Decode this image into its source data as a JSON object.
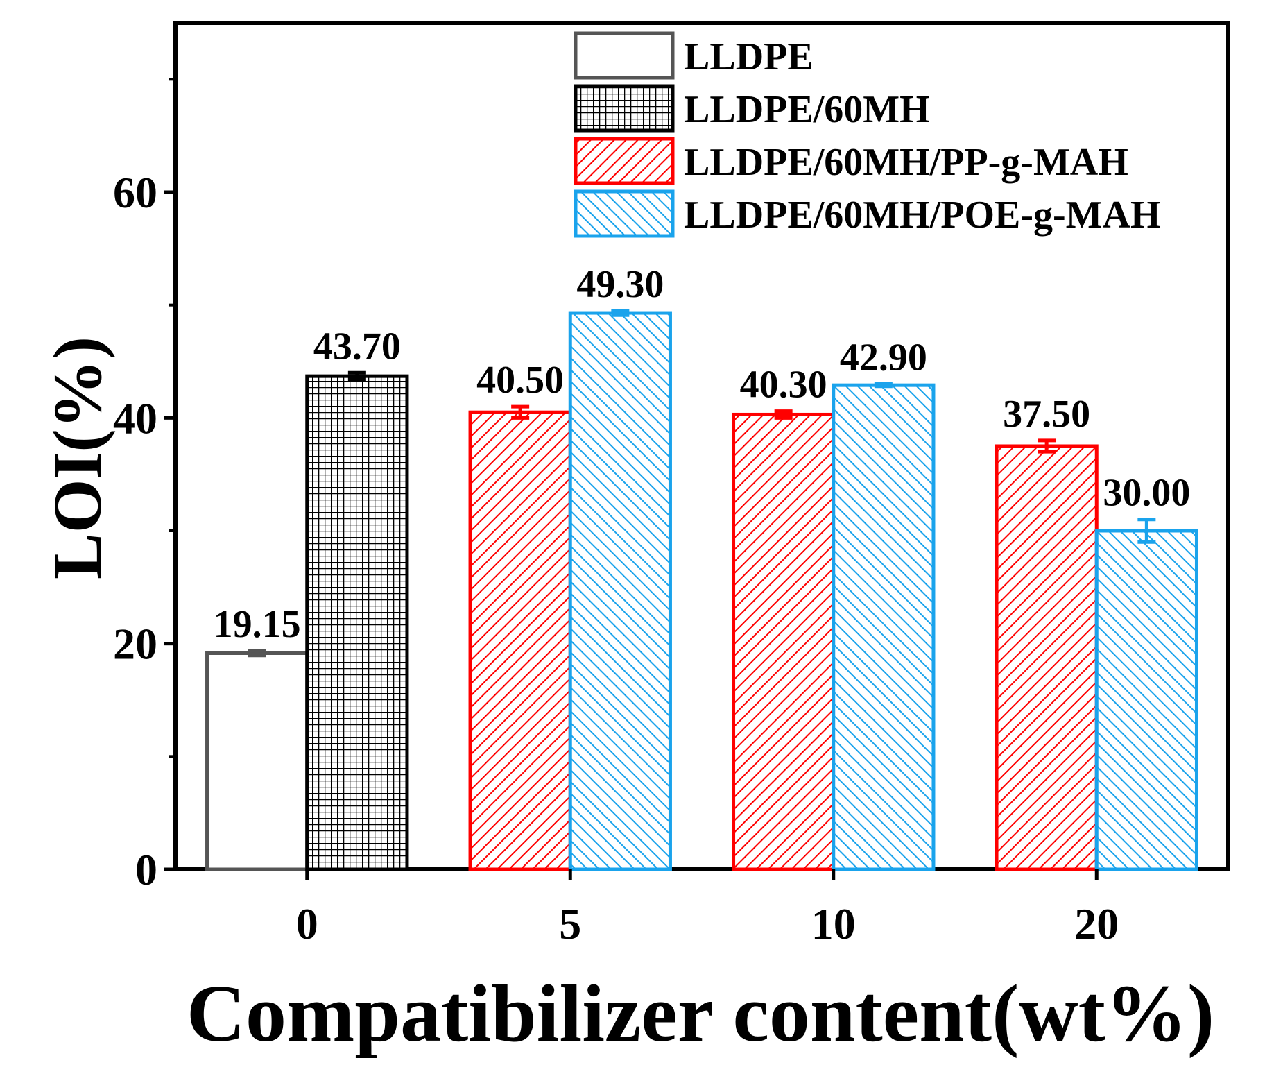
{
  "chart_data": {
    "type": "bar",
    "title": "",
    "xlabel": "Compatibilizer content(wt%)",
    "ylabel": "LOI(%)",
    "ylim": [
      0,
      75
    ],
    "yticks": [
      "0",
      "20",
      "40",
      "60"
    ],
    "grid": false,
    "legend_position": "top-right",
    "groups": [
      {
        "category": "0",
        "bars": [
          {
            "series": "LLDPE",
            "value": 19.15,
            "label": "19.15",
            "error": 0.2
          },
          {
            "series": "LLDPE/60MH",
            "value": 43.7,
            "label": "43.70",
            "error": 0.3
          }
        ]
      },
      {
        "category": "5",
        "bars": [
          {
            "series": "LLDPE/60MH/PP-g-MAH",
            "value": 40.5,
            "label": "40.50",
            "error": 0.5
          },
          {
            "series": "LLDPE/60MH/POE-g-MAH",
            "value": 49.3,
            "label": "49.30",
            "error": 0.2
          }
        ]
      },
      {
        "category": "10",
        "bars": [
          {
            "series": "LLDPE/60MH/PP-g-MAH",
            "value": 40.3,
            "label": "40.30",
            "error": 0.3
          },
          {
            "series": "LLDPE/60MH/POE-g-MAH",
            "value": 42.9,
            "label": "42.90",
            "error": 0.1
          }
        ]
      },
      {
        "category": "20",
        "bars": [
          {
            "series": "LLDPE/60MH/PP-g-MAH",
            "value": 37.5,
            "label": "37.50",
            "error": 0.5
          },
          {
            "series": "LLDPE/60MH/POE-g-MAH",
            "value": 30.0,
            "label": "30.00",
            "error": 1.0
          }
        ]
      }
    ],
    "series": [
      {
        "name": "LLDPE",
        "color": "#555555",
        "pattern": "none"
      },
      {
        "name": "LLDPE/60MH",
        "color": "#000000",
        "pattern": "grid"
      },
      {
        "name": "LLDPE/60MH/PP-g-MAH",
        "color": "#ff0000",
        "pattern": "hatch-right"
      },
      {
        "name": "LLDPE/60MH/POE-g-MAH",
        "color": "#1aa3ec",
        "pattern": "hatch-left"
      }
    ]
  }
}
